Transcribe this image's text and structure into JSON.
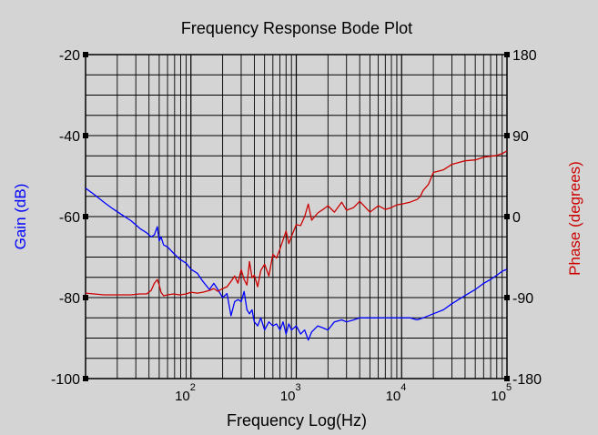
{
  "chart_data": {
    "type": "line",
    "title": "Frequency Response Bode Plot",
    "xlabel": "Frequency Log(Hz)",
    "ylabel_left": "Gain (dB)",
    "ylabel_right": "Phase (degrees)",
    "x_scale": "log",
    "xlim": [
      10,
      100000
    ],
    "ylim_left": [
      -100,
      -20
    ],
    "ylim_right": [
      -180,
      180
    ],
    "grid": true,
    "x_ticks": [
      {
        "base": "10",
        "exp": "2",
        "value": 100
      },
      {
        "base": "10",
        "exp": "3",
        "value": 1000
      },
      {
        "base": "10",
        "exp": "4",
        "value": 10000
      },
      {
        "base": "10",
        "exp": "5",
        "value": 100000
      }
    ],
    "y_ticks_left": [
      {
        "label": "-20",
        "value": -20
      },
      {
        "label": "-40",
        "value": -40
      },
      {
        "label": "-60",
        "value": -60
      },
      {
        "label": "-80",
        "value": -80
      },
      {
        "label": "-100",
        "value": -100
      }
    ],
    "y_ticks_right": [
      {
        "label": "180",
        "value": 180
      },
      {
        "label": "90",
        "value": 90
      },
      {
        "label": "0",
        "value": 0
      },
      {
        "label": "-90",
        "value": -90
      },
      {
        "label": "-180",
        "value": -180
      }
    ],
    "series": [
      {
        "axis": "left",
        "color": "#0000ff",
        "x": [
          10,
          12,
          15,
          18,
          22,
          27,
          33,
          38,
          42,
          45,
          48,
          50,
          52,
          55,
          60,
          68,
          78,
          90,
          100,
          115,
          130,
          150,
          165,
          180,
          200,
          220,
          240,
          260,
          280,
          300,
          320,
          340,
          360,
          380,
          400,
          430,
          460,
          500,
          550,
          600,
          650,
          700,
          750,
          800,
          850,
          900,
          1000,
          1100,
          1200,
          1300,
          1400,
          1600,
          1800,
          2000,
          2300,
          2700,
          3000,
          3500,
          4000,
          5000,
          6000,
          7000,
          8000,
          9000,
          10000,
          12000,
          14000,
          16000,
          20000,
          25000,
          30000,
          40000,
          50000,
          60000,
          70000,
          80000,
          90000,
          100000
        ],
        "y": [
          -53,
          -54.5,
          -56.5,
          -58,
          -59.5,
          -61,
          -63,
          -64,
          -65,
          -64.5,
          -62.5,
          -66,
          -65,
          -67,
          -67.5,
          -69,
          -70.5,
          -71.5,
          -73,
          -74,
          -76,
          -78,
          -76.5,
          -78,
          -80,
          -79,
          -84.5,
          -81,
          -80.5,
          -81,
          -78.5,
          -83,
          -84,
          -83,
          -86,
          -87,
          -85,
          -88,
          -86,
          -87,
          -86.5,
          -88,
          -86,
          -89,
          -86.5,
          -88,
          -87,
          -89,
          -88,
          -90.5,
          -88.5,
          -87,
          -87.5,
          -88,
          -86,
          -85.5,
          -86,
          -85.5,
          -85,
          -85,
          -85,
          -85,
          -85,
          -85,
          -85,
          -85,
          -85.5,
          -85,
          -84,
          -83,
          -81.5,
          -79.5,
          -78,
          -76.5,
          -75.5,
          -74.5,
          -73.5,
          -73
        ]
      },
      {
        "axis": "right",
        "color": "#cc0000",
        "x": [
          10,
          12,
          15,
          18,
          22,
          27,
          33,
          38,
          42,
          45,
          48,
          50,
          52,
          55,
          60,
          68,
          78,
          90,
          100,
          115,
          130,
          150,
          165,
          180,
          200,
          220,
          240,
          260,
          280,
          300,
          320,
          340,
          360,
          380,
          400,
          430,
          460,
          500,
          550,
          600,
          650,
          700,
          750,
          800,
          850,
          900,
          1000,
          1100,
          1200,
          1300,
          1400,
          1600,
          1800,
          2000,
          2300,
          2700,
          3000,
          3500,
          4000,
          5000,
          6000,
          7000,
          8000,
          9000,
          10000,
          12000,
          14000,
          15000,
          16000,
          18000,
          20000,
          25000,
          30000,
          40000,
          50000,
          60000,
          70000,
          80000,
          90000,
          100000
        ],
        "y": [
          -85,
          -86,
          -87,
          -87,
          -87,
          -87,
          -86,
          -86,
          -82,
          -74,
          -70,
          -76,
          -84,
          -88,
          -87,
          -86,
          -87,
          -86,
          -84,
          -85,
          -84,
          -82,
          -80,
          -83,
          -80,
          -78,
          -72,
          -66,
          -74,
          -59,
          -70,
          -76,
          -50,
          -68,
          -65,
          -78,
          -60,
          -53,
          -66,
          -42,
          -46,
          -36,
          -26,
          -16,
          -30,
          -22,
          -9,
          -10,
          0,
          14,
          -4,
          4,
          8,
          12,
          5,
          16,
          7,
          10,
          17,
          5,
          12,
          8,
          10,
          13,
          14,
          16,
          19,
          22,
          29,
          36,
          49,
          52,
          58,
          62,
          63,
          66,
          67,
          68,
          70,
          73
        ]
      }
    ]
  }
}
